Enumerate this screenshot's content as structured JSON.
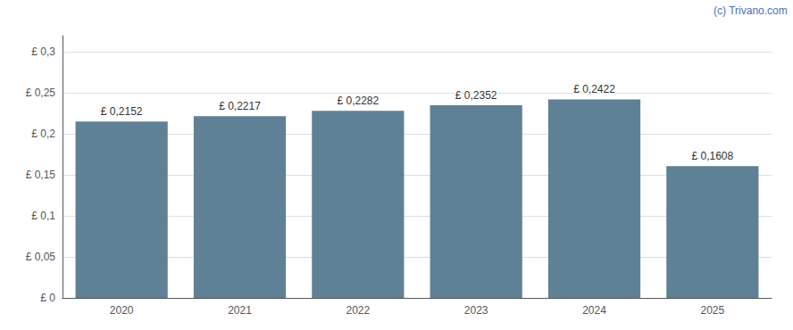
{
  "chart_data": {
    "type": "bar",
    "categories": [
      "2020",
      "2021",
      "2022",
      "2023",
      "2024",
      "2025"
    ],
    "values": [
      0.2152,
      0.2217,
      0.2282,
      0.2352,
      0.2422,
      0.1608
    ],
    "value_labels": [
      "£ 0,2152",
      "£ 0,2217",
      "£ 0,2282",
      "£ 0,2352",
      "£ 0,2422",
      "£ 0,1608"
    ],
    "data_labels": true,
    "color": "#5f8196",
    "ylim": [
      0,
      0.32
    ],
    "yticks": [
      {
        "value": 0.0,
        "label": "£ 0"
      },
      {
        "value": 0.05,
        "label": "£ 0,05"
      },
      {
        "value": 0.1,
        "label": "£ 0,1"
      },
      {
        "value": 0.15,
        "label": "£ 0,15"
      },
      {
        "value": 0.2,
        "label": "£ 0,2"
      },
      {
        "value": 0.25,
        "label": "£ 0,25"
      },
      {
        "value": 0.3,
        "label": "£ 0,3"
      }
    ],
    "grid": true,
    "annotations": [
      "(c) Trivano.com"
    ]
  }
}
